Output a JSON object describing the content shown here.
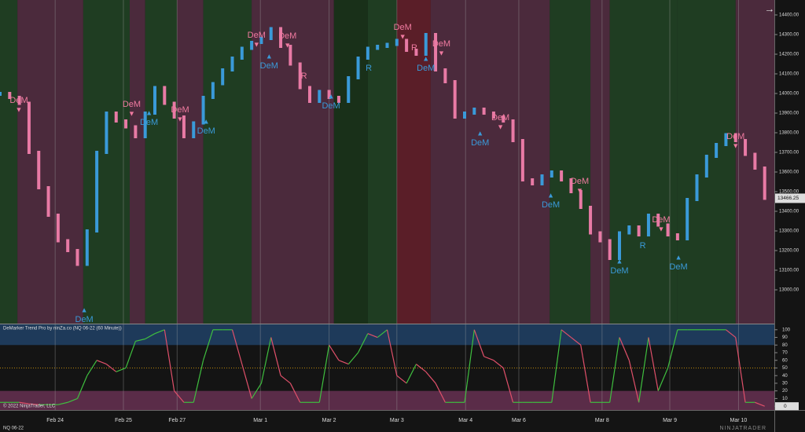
{
  "chart_data": [
    {
      "type": "candlestick",
      "symbol": "NQ 06-22",
      "values": [
        14000,
        13980,
        13950,
        13700,
        13520,
        13380,
        13250,
        13200,
        13130,
        13300,
        13700,
        13900,
        13860,
        13830,
        13780,
        13900,
        14030,
        13950,
        13880,
        13780,
        13850,
        13980,
        14050,
        14120,
        14180,
        14230,
        14260,
        14280,
        14330,
        14240,
        14150,
        14030,
        13960,
        14010,
        13980,
        13960,
        14080,
        14180,
        14230,
        14240,
        14250,
        14270,
        14220,
        14200,
        14300,
        14120,
        14060,
        13880,
        13900,
        13920,
        13900,
        13880,
        13860,
        13760,
        13560,
        13540,
        13580,
        13600,
        13560,
        13500,
        13420,
        13290,
        13250,
        13160,
        13290,
        13320,
        13280,
        13380,
        13330,
        13280,
        13260,
        13460,
        13580,
        13680,
        13740,
        13790,
        13760,
        13690,
        13620,
        13466.25
      ],
      "up_color": "#3a9ad9",
      "down_color": "#e87aa5",
      "xlim": [
        0,
        80
      ],
      "xticks": [
        {
          "value": 5.7,
          "label": "Feb 24"
        },
        {
          "value": 12.75,
          "label": "Feb 25"
        },
        {
          "value": 18.3,
          "label": "Feb 27"
        },
        {
          "value": 26.9,
          "label": "Mar 1"
        },
        {
          "value": 34,
          "label": "Mar 2"
        },
        {
          "value": 41,
          "label": "Mar 3"
        },
        {
          "value": 48.1,
          "label": "Mar 4"
        },
        {
          "value": 53.6,
          "label": "Mar 6"
        },
        {
          "value": 62.2,
          "label": "Mar 8"
        },
        {
          "value": 69.2,
          "label": "Mar 9"
        },
        {
          "value": 76.3,
          "label": "Mar 10"
        }
      ],
      "ylim": [
        12828,
        14476
      ],
      "yticks": [
        {
          "value": 13000,
          "label": "13000.00"
        },
        {
          "value": 13100,
          "label": "13100.00"
        },
        {
          "value": 13200,
          "label": "13200.00"
        },
        {
          "value": 13300,
          "label": "13300.00"
        },
        {
          "value": 13400,
          "label": "13400.00"
        },
        {
          "value": 13500,
          "label": "13500.00"
        },
        {
          "value": 13600,
          "label": "13600.00"
        },
        {
          "value": 13700,
          "label": "13700.00"
        },
        {
          "value": 13800,
          "label": "13800.00"
        },
        {
          "value": 13900,
          "label": "13900.00"
        },
        {
          "value": 14000,
          "label": "14000.00"
        },
        {
          "value": 14100,
          "label": "14100.00"
        },
        {
          "value": 14200,
          "label": "14200.00"
        },
        {
          "value": 14300,
          "label": "14300.00"
        },
        {
          "value": 14400,
          "label": "14400.00"
        }
      ],
      "zones": [
        {
          "x": [
            0,
            1.8
          ],
          "color": "#1f3d22"
        },
        {
          "x": [
            1.8,
            8.6
          ],
          "color": "#4b2a3c"
        },
        {
          "x": [
            8.6,
            13.4
          ],
          "color": "#1f3d22"
        },
        {
          "x": [
            13.4,
            15
          ],
          "color": "#4b2a3c"
        },
        {
          "x": [
            15,
            18.3
          ],
          "color": "#1f3d22"
        },
        {
          "x": [
            18.3,
            21
          ],
          "color": "#4b2a3c"
        },
        {
          "x": [
            21,
            26
          ],
          "color": "#1f3d22"
        },
        {
          "x": [
            26,
            34.5
          ],
          "color": "#4b2a3c"
        },
        {
          "x": [
            34.5,
            38
          ],
          "color": "#193019"
        },
        {
          "x": [
            38,
            41
          ],
          "color": "#1f3d22"
        },
        {
          "x": [
            41,
            44.5
          ],
          "color": "#5a1e28"
        },
        {
          "x": [
            44.5,
            56.8
          ],
          "color": "#4b2a3c"
        },
        {
          "x": [
            56.8,
            61
          ],
          "color": "#1f3d22"
        },
        {
          "x": [
            61,
            63
          ],
          "color": "#4b2a3c"
        },
        {
          "x": [
            63,
            70
          ],
          "color": "#1f3d22"
        },
        {
          "x": [
            70,
            76
          ],
          "color": "#1f3d22"
        },
        {
          "x": [
            76,
            80
          ],
          "color": "#4b2a3c"
        }
      ],
      "down_signals": {
        "label": "DeM",
        "arrow": "▼",
        "color": "#f07aa0",
        "points": [
          [
            1.95,
            13916
          ],
          [
            13.6,
            13896
          ],
          [
            18.6,
            13868
          ],
          [
            26.5,
            14248
          ],
          [
            29.7,
            14244
          ],
          [
            41.6,
            14288
          ],
          [
            45.6,
            14204
          ],
          [
            51.7,
            13828
          ],
          [
            59.9,
            13504
          ],
          [
            68.3,
            13308
          ],
          [
            76,
            13732
          ]
        ]
      },
      "up_signals": {
        "label": "DeM",
        "arrow": "▲",
        "color": "#3a9ad9",
        "points": [
          [
            8.7,
            12896
          ],
          [
            15.4,
            13900
          ],
          [
            21.3,
            13856
          ],
          [
            27.8,
            14188
          ],
          [
            34.2,
            13984
          ],
          [
            44,
            14176
          ],
          [
            49.6,
            13796
          ],
          [
            56.9,
            13480
          ],
          [
            64,
            13144
          ],
          [
            70.1,
            13164
          ]
        ]
      },
      "r_labels": [
        {
          "text": "R",
          "x": 31.4,
          "y": 14088,
          "color": "#f07aa0"
        },
        {
          "text": "R",
          "x": 38.1,
          "y": 14128,
          "color": "#3a9ad9"
        },
        {
          "text": "R",
          "x": 42.8,
          "y": 14232,
          "color": "#f07aa0"
        },
        {
          "text": "R",
          "x": 66.4,
          "y": 13224,
          "color": "#3a9ad9"
        }
      ],
      "copyright": "© 2022 NinjaTrader, LLC",
      "logo": "NINJATRADER",
      "arrow": "→"
    },
    {
      "type": "line",
      "title": "DeMarker Trend Pro by ninZa.co (NQ 06-22 (60 Minute))",
      "values": [
        5,
        5,
        5,
        3,
        2,
        2,
        2,
        5,
        10,
        40,
        60,
        55,
        45,
        50,
        85,
        88,
        95,
        100,
        20,
        5,
        5,
        60,
        100,
        100,
        100,
        55,
        10,
        30,
        90,
        40,
        30,
        5,
        5,
        5,
        80,
        60,
        55,
        70,
        95,
        90,
        100,
        40,
        30,
        55,
        45,
        30,
        5,
        5,
        5,
        100,
        65,
        60,
        50,
        5,
        5,
        5,
        5,
        5,
        100,
        90,
        80,
        5,
        5,
        5,
        90,
        60,
        5,
        90,
        20,
        50,
        100,
        100,
        100,
        100,
        100,
        100,
        90,
        5,
        5,
        0
      ],
      "up_color": "#3fbf3f",
      "down_color": "#e0506a",
      "xlim": [
        0,
        80
      ],
      "ylim": [
        -5,
        107
      ],
      "yticks": [
        0,
        10,
        20,
        30,
        40,
        50,
        60,
        70,
        80,
        90,
        100
      ],
      "levels": [
        20,
        80
      ],
      "upper_color": "#1e3a5a",
      "lower_color": "#5a2c48",
      "mid": 50,
      "mid_color": "#b8860b"
    }
  ]
}
